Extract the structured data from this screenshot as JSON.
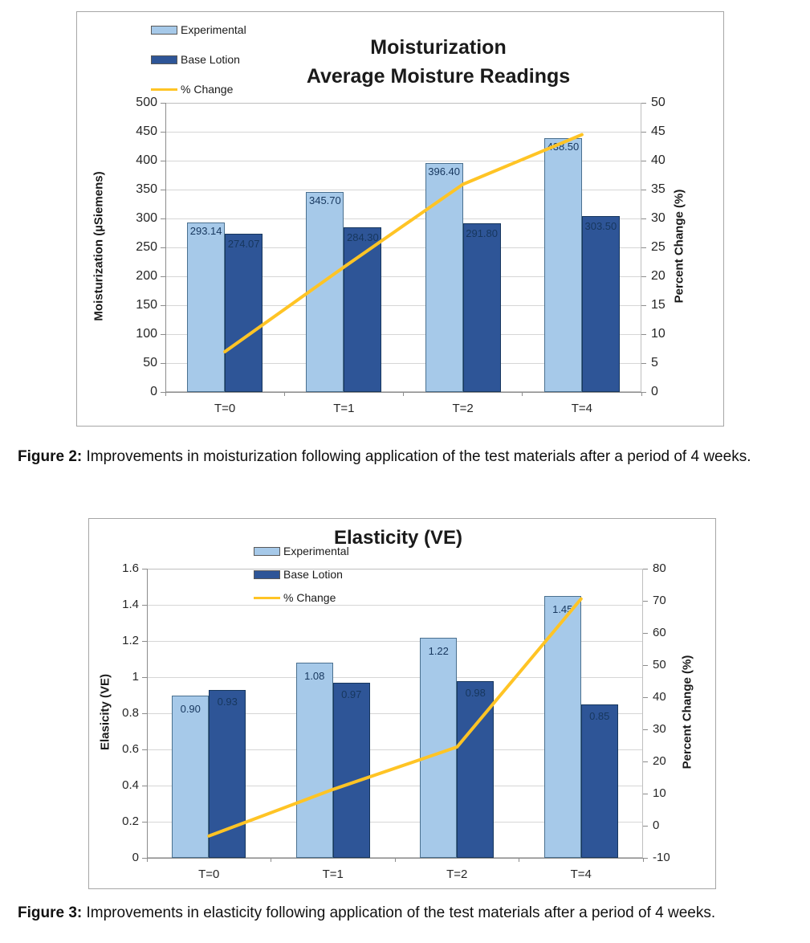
{
  "colors": {
    "experimental_fill": "#a6c9e9",
    "experimental_border": "#4a708f",
    "base_lotion_fill": "#2e5597",
    "base_lotion_border": "#17375e",
    "pct_change_line": "#ffc425",
    "gridline": "#d6d6d6",
    "axis_line": "#8c8c8c",
    "data_label_text": "#17375e"
  },
  "figure2": {
    "caption_label": "Figure 2:",
    "caption_text": " Improvements in moisturization following application of the test materials after a period of 4 weeks."
  },
  "figure3": {
    "caption_label": "Figure 3:",
    "caption_text": " Improvements in elasticity following application of the test materials after a period of 4 weeks."
  },
  "chart_data": [
    {
      "type": "bar",
      "title_line1": "Moisturization",
      "title_line2": "Average Moisture Readings",
      "categories": [
        "T=0",
        "T=1",
        "T=2",
        "T=4"
      ],
      "legend": [
        "Experimental",
        "Base Lotion",
        "% Change"
      ],
      "series": [
        {
          "name": "Experimental",
          "type": "bar",
          "axis": "left",
          "values": [
            293.14,
            345.7,
            396.4,
            438.5
          ],
          "labels": [
            "293.14",
            "345.70",
            "396.40",
            "438.50"
          ]
        },
        {
          "name": "Base Lotion",
          "type": "bar",
          "axis": "left",
          "values": [
            274.07,
            284.3,
            291.8,
            303.5
          ],
          "labels": [
            "274.07",
            "284.30",
            "291.80",
            "303.50"
          ]
        },
        {
          "name": "% Change",
          "type": "line",
          "axis": "right",
          "values": [
            6.96,
            21.6,
            35.9,
            44.5
          ]
        }
      ],
      "left_axis": {
        "label": "Moisturization (µSiemens)",
        "min": 0,
        "max": 500,
        "ticks": [
          "500",
          "450",
          "400",
          "350",
          "300",
          "250",
          "200",
          "150",
          "100",
          "50",
          "0"
        ]
      },
      "right_axis": {
        "label": "Percent Change (%)",
        "min": 0,
        "max": 50,
        "ticks": [
          "50",
          "45",
          "40",
          "35",
          "30",
          "25",
          "20",
          "15",
          "10",
          "5",
          "0"
        ]
      },
      "legend_position": "top-left-outside",
      "grid": "horizontal"
    },
    {
      "type": "bar",
      "title_line1": "Elasticity (VE)",
      "title_line2": "",
      "categories": [
        "T=0",
        "T=1",
        "T=2",
        "T=4"
      ],
      "legend": [
        "Experimental",
        "Base Lotion",
        "% Change"
      ],
      "series": [
        {
          "name": "Experimental",
          "type": "bar",
          "axis": "left",
          "values": [
            0.9,
            1.08,
            1.22,
            1.45
          ],
          "labels": [
            "0.90",
            "1.08",
            "1.22",
            "1.45"
          ]
        },
        {
          "name": "Base Lotion",
          "type": "bar",
          "axis": "left",
          "values": [
            0.93,
            0.97,
            0.98,
            0.85
          ],
          "labels": [
            "0.93",
            "0.97",
            "0.98",
            "0.85"
          ]
        },
        {
          "name": "% Change",
          "type": "line",
          "axis": "right",
          "values": [
            -3.2,
            11.3,
            24.5,
            70.6
          ]
        }
      ],
      "left_axis": {
        "label": "Elasicity (VE)",
        "min": 0,
        "max": 1.6,
        "ticks": [
          "1.6",
          "1.4",
          "1.2",
          "1",
          "0.8",
          "0.6",
          "0.4",
          "0.2",
          "0"
        ]
      },
      "right_axis": {
        "label": "Percent Change (%)",
        "min": -10,
        "max": 80,
        "ticks": [
          "80",
          "70",
          "60",
          "50",
          "40",
          "30",
          "20",
          "10",
          "0",
          "-10"
        ]
      },
      "legend_position": "top-left-inside",
      "grid": "horizontal"
    }
  ]
}
